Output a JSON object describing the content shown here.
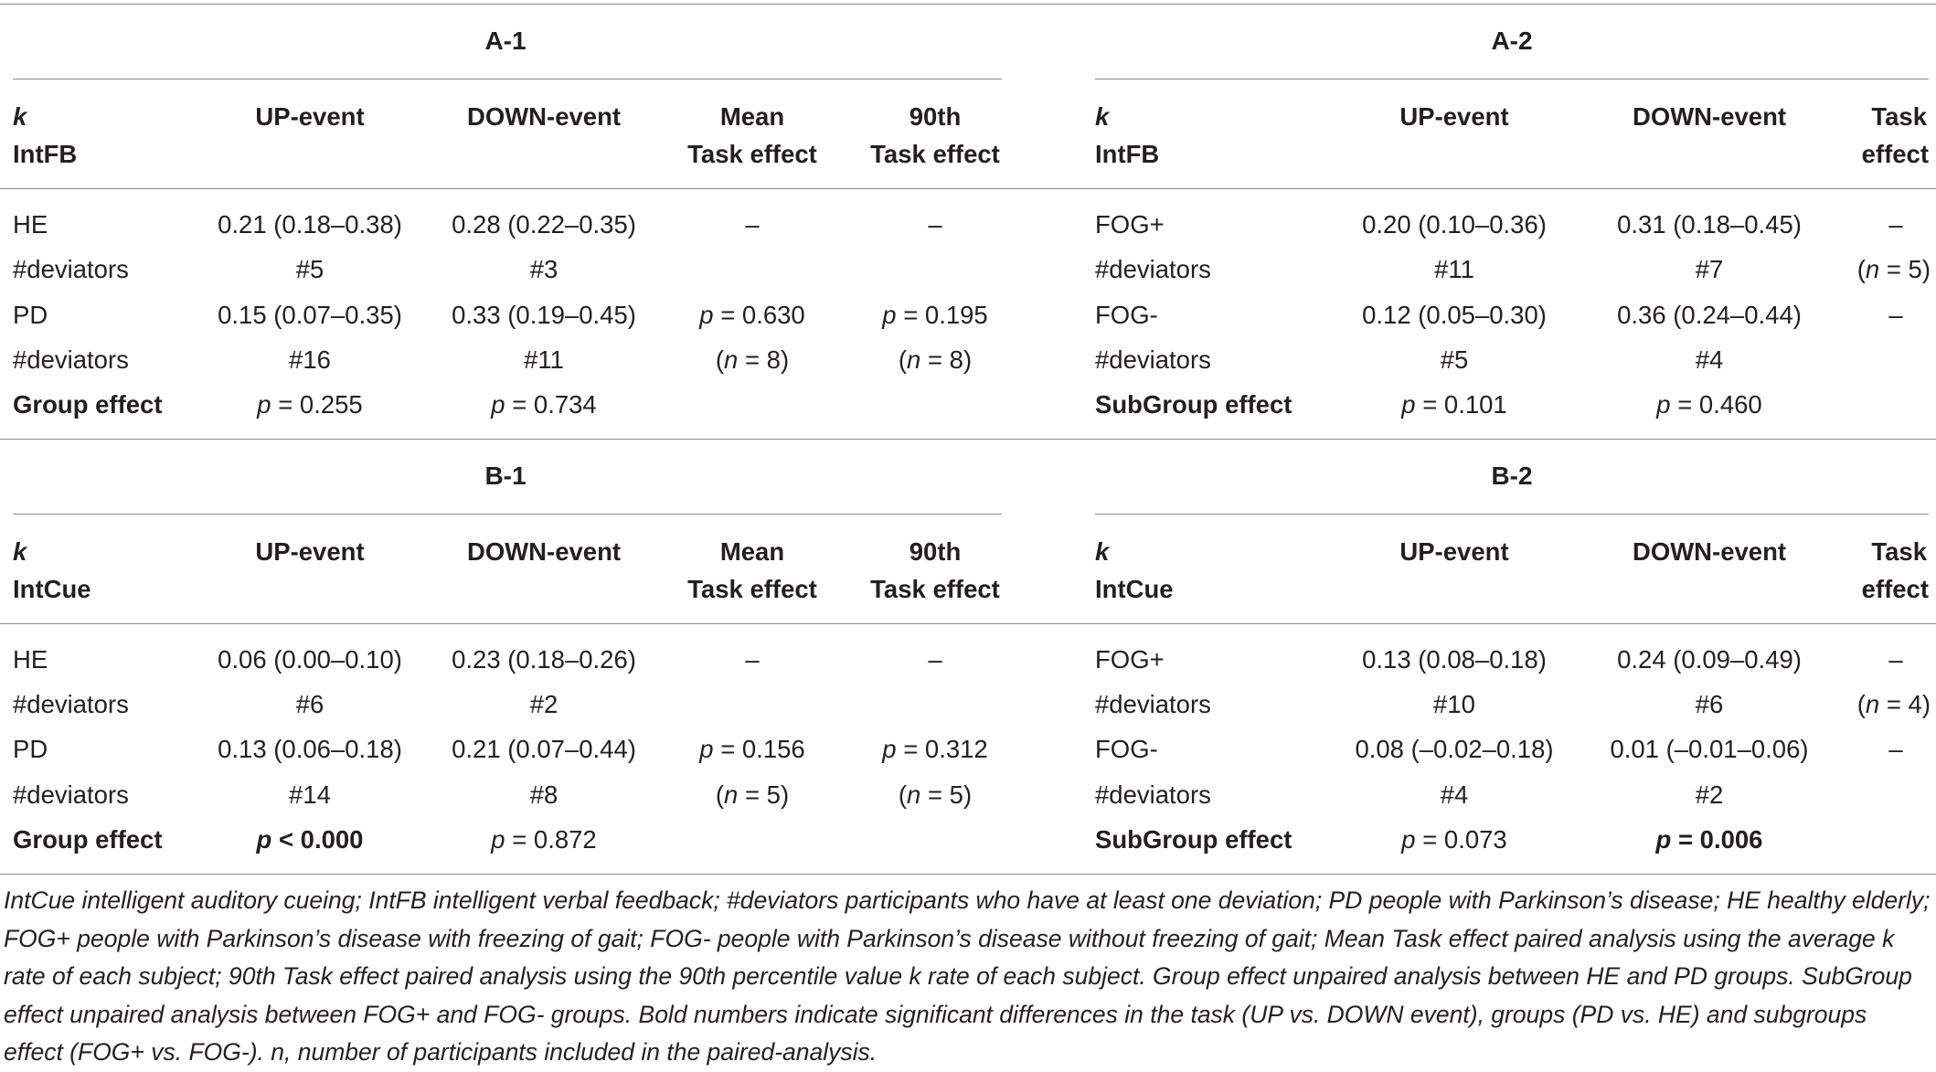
{
  "panels": {
    "A1": {
      "title": "A-1",
      "head_k": "k",
      "head_var": "IntFB",
      "head_up": "UP-event",
      "head_down": "DOWN-event",
      "head_mean_1": "Mean",
      "head_mean_2": "Task effect",
      "head_90_1": "90th",
      "head_90_2": "Task effect",
      "rows": [
        {
          "label": "HE",
          "up": "0.21 (0.18–0.38)",
          "down": "0.28 (0.22–0.35)",
          "mean": "–",
          "p90": "–"
        },
        {
          "label": "#deviators",
          "up": "#5",
          "down": "#3",
          "mean": "",
          "p90": ""
        },
        {
          "label": "PD",
          "up": "0.15 (0.07–0.35)",
          "down": "0.33 (0.19–0.45)",
          "mean": "p = 0.630",
          "p90": "p = 0.195"
        },
        {
          "label": "#deviators",
          "up": "#16",
          "down": "#11",
          "mean": "(n = 8)",
          "p90": "(n = 8)"
        }
      ],
      "effect_label": "Group effect",
      "effect_up": "p = 0.255",
      "effect_down": "p = 0.734"
    },
    "A2": {
      "title": "A-2",
      "head_k": "k",
      "head_var": "IntFB",
      "head_up": "UP-event",
      "head_down": "DOWN-event",
      "head_task_1": "Task",
      "head_task_2": "effect",
      "rows": [
        {
          "label": "FOG+",
          "up": "0.20 (0.10–0.36)",
          "down": "0.31 (0.18–0.45)",
          "task": "–"
        },
        {
          "label": "#deviators",
          "up": "#11",
          "down": "#7",
          "task": "(n = 5)"
        },
        {
          "label": "FOG-",
          "up": "0.12 (0.05–0.30)",
          "down": "0.36 (0.24–0.44)",
          "task": "–"
        },
        {
          "label": "#deviators",
          "up": "#5",
          "down": "#4",
          "task": ""
        }
      ],
      "effect_label": "SubGroup effect",
      "effect_up": "p = 0.101",
      "effect_down": "p = 0.460"
    },
    "B1": {
      "title": "B-1",
      "head_k": "k",
      "head_var": "IntCue",
      "head_up": "UP-event",
      "head_down": "DOWN-event",
      "head_mean_1": "Mean",
      "head_mean_2": "Task effect",
      "head_90_1": "90th",
      "head_90_2": "Task effect",
      "rows": [
        {
          "label": "HE",
          "up": "0.06 (0.00–0.10)",
          "down": "0.23 (0.18–0.26)",
          "mean": "–",
          "p90": "–"
        },
        {
          "label": "#deviators",
          "up": "#6",
          "down": "#2",
          "mean": "",
          "p90": ""
        },
        {
          "label": "PD",
          "up": "0.13 (0.06–0.18)",
          "down": "0.21 (0.07–0.44)",
          "mean": "p = 0.156",
          "p90": "p = 0.312"
        },
        {
          "label": "#deviators",
          "up": "#14",
          "down": "#8",
          "mean": "(n = 5)",
          "p90": "(n = 5)"
        }
      ],
      "effect_label": "Group effect",
      "effect_up": "p < 0.000",
      "effect_down": "p = 0.872"
    },
    "B2": {
      "title": "B-2",
      "head_k": "k",
      "head_var": "IntCue",
      "head_up": "UP-event",
      "head_down": "DOWN-event",
      "head_task_1": "Task",
      "head_task_2": "effect",
      "rows": [
        {
          "label": "FOG+",
          "up": "0.13 (0.08–0.18)",
          "down": "0.24 (0.09–0.49)",
          "task": "–"
        },
        {
          "label": "#deviators",
          "up": "#10",
          "down": "#6",
          "task": "(n = 4)"
        },
        {
          "label": "FOG-",
          "up": "0.08 (–0.02–0.18)",
          "down": "0.01 (–0.01–0.06)",
          "task": "–"
        },
        {
          "label": "#deviators",
          "up": "#4",
          "down": "#2",
          "task": ""
        }
      ],
      "effect_label": "SubGroup effect",
      "effect_up": "p = 0.073",
      "effect_down": "p = 0.006"
    }
  },
  "caption": "IntCue intelligent auditory cueing; IntFB intelligent verbal feedback; #deviators participants who have at least one deviation; PD people with Parkinson’s disease; HE healthy elderly; FOG+ people with Parkinson’s disease with freezing of gait; FOG- people with Parkinson’s disease without freezing of gait; Mean Task effect paired analysis using the average k rate of each subject; 90th Task effect paired analysis using the 90th percentile value k rate of each subject. Group effect unpaired analysis between HE and PD groups. SubGroup effect unpaired analysis between FOG+ and FOG- groups. Bold numbers indicate significant differences in the task (UP vs. DOWN event), groups (PD vs. HE) and subgroups effect (FOG+ vs. FOG-). n, number of participants included in the paired-analysis."
}
